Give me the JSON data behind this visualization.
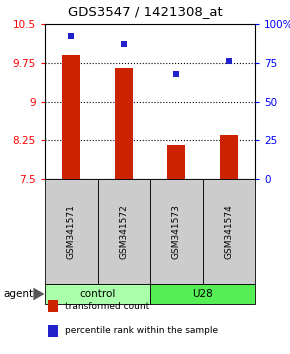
{
  "title": "GDS3547 / 1421308_at",
  "samples": [
    "GSM341571",
    "GSM341572",
    "GSM341573",
    "GSM341574"
  ],
  "bar_values": [
    9.9,
    9.65,
    8.15,
    8.35
  ],
  "percentile_values": [
    92,
    87,
    68,
    76
  ],
  "bar_color": "#cc2200",
  "dot_color": "#2222cc",
  "ylim_left": [
    7.5,
    10.5
  ],
  "ylim_right": [
    0,
    100
  ],
  "yticks_left": [
    7.5,
    8.25,
    9.0,
    9.75,
    10.5
  ],
  "ytick_labels_left": [
    "7.5",
    "8.25",
    "9",
    "9.75",
    "10.5"
  ],
  "yticks_right": [
    0,
    25,
    50,
    75,
    100
  ],
  "ytick_labels_right": [
    "0",
    "25",
    "50",
    "75",
    "100%"
  ],
  "groups": [
    {
      "label": "control",
      "indices": [
        0,
        1
      ],
      "color": "#aaffaa"
    },
    {
      "label": "U28",
      "indices": [
        2,
        3
      ],
      "color": "#55ee55"
    }
  ],
  "agent_label": "agent",
  "legend_bar_label": "transformed count",
  "legend_dot_label": "percentile rank within the sample",
  "bar_width": 0.35
}
